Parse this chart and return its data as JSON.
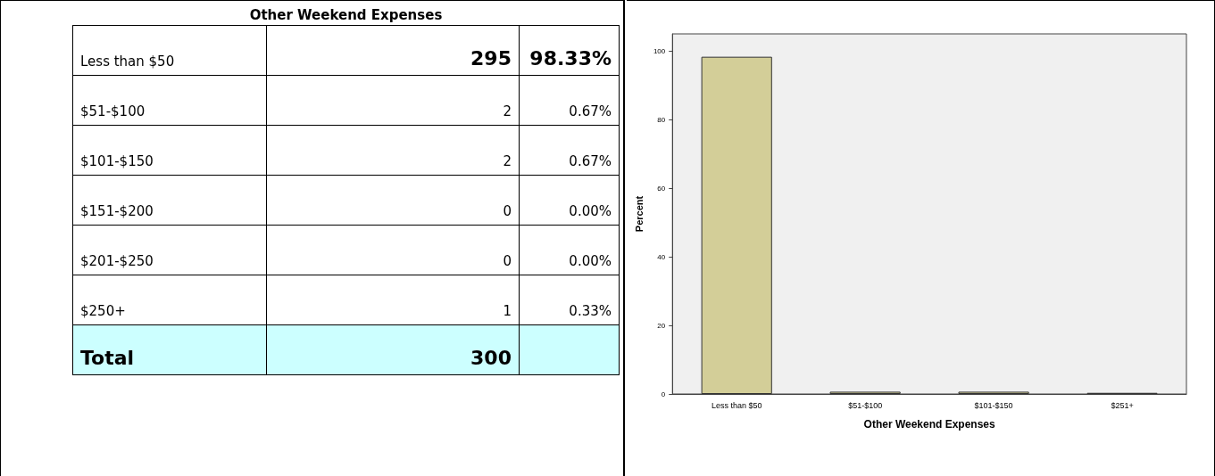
{
  "chart_data": [
    {
      "type": "other",
      "title": "Other Weekend Expenses",
      "categories": [
        "Less than $50",
        "$51-$100",
        "$101-$150",
        "$151-$200",
        "$201-$250",
        "$250+",
        "Total"
      ],
      "series": [
        {
          "values": [
            295,
            2,
            2,
            0,
            0,
            1,
            300
          ]
        },
        {
          "values": [
            98.33,
            0.67,
            0.67,
            0,
            0,
            0.33,
            null
          ],
          "value_labels": [
            "98.33%",
            "0.67%",
            "0.67%",
            "0.00%",
            "0.00%",
            "0.33%",
            null
          ]
        }
      ],
      "data_labels": true
    },
    {
      "type": "bar",
      "xlabel": "Other Weekend Expenses",
      "ylabel": "Percent",
      "categories": [
        "Less than $50",
        "$51-$100",
        "$101-$150",
        "$251+"
      ],
      "values": [
        98.33,
        0.67,
        0.67,
        0.33
      ],
      "color": "#d3ce98",
      "ylim": [
        0,
        105
      ],
      "yticks": [
        0,
        20,
        40,
        60,
        80,
        100
      ],
      "grid": false
    }
  ]
}
